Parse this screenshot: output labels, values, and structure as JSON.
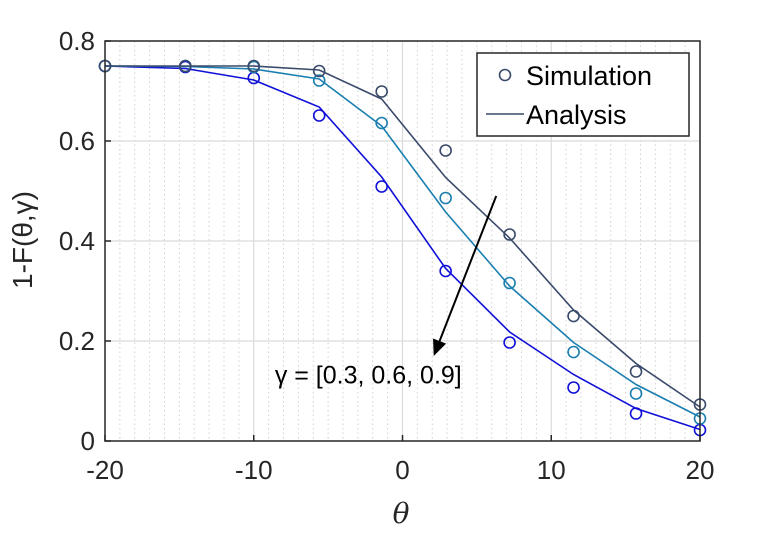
{
  "chart_data": {
    "type": "line",
    "title": "",
    "xlabel": "θ",
    "ylabel": "1-F(θ,γ)",
    "xlim": [
      -20,
      20
    ],
    "ylim": [
      0,
      0.8
    ],
    "xticks": [
      -20,
      -10,
      0,
      10,
      20
    ],
    "yticks": [
      0,
      0.2,
      0.4,
      0.6,
      0.8
    ],
    "x": [
      -20,
      -14.6,
      -10,
      -5.6,
      -1.4,
      2.9,
      7.2,
      11.5,
      15.7,
      20
    ],
    "series": [
      {
        "name": "γ = 0.3",
        "color": "#1010d8",
        "simulation": [
          0.75,
          0.748,
          0.726,
          0.651,
          0.509,
          0.34,
          0.197,
          0.107,
          0.055,
          0.022
        ],
        "analysis": [
          0.75,
          0.745,
          0.722,
          0.668,
          0.528,
          0.345,
          0.218,
          0.133,
          0.065,
          0.023
        ]
      },
      {
        "name": "γ = 0.6",
        "color": "#1a7fb0",
        "simulation": [
          0.75,
          0.75,
          0.748,
          0.721,
          0.636,
          0.486,
          0.316,
          0.178,
          0.095,
          0.045
        ],
        "analysis": [
          0.75,
          0.749,
          0.744,
          0.724,
          0.63,
          0.458,
          0.31,
          0.197,
          0.113,
          0.048
        ]
      },
      {
        "name": "γ = 0.9",
        "color": "#3a4a6a",
        "simulation": [
          0.75,
          0.75,
          0.75,
          0.74,
          0.699,
          0.581,
          0.413,
          0.25,
          0.139,
          0.073
        ],
        "analysis": [
          0.75,
          0.75,
          0.75,
          0.742,
          0.684,
          0.527,
          0.406,
          0.262,
          0.155,
          0.068
        ]
      }
    ],
    "legend": {
      "position": "top-right",
      "entries": [
        "Simulation",
        "Analysis"
      ]
    },
    "annotation": {
      "text": "γ = [0.3, 0.6, 0.9]",
      "arrow_from": [
        6.3,
        0.49
      ],
      "arrow_to": [
        2.1,
        0.17
      ],
      "text_anchor": [
        -2.3,
        0.115
      ]
    },
    "grid": true
  }
}
